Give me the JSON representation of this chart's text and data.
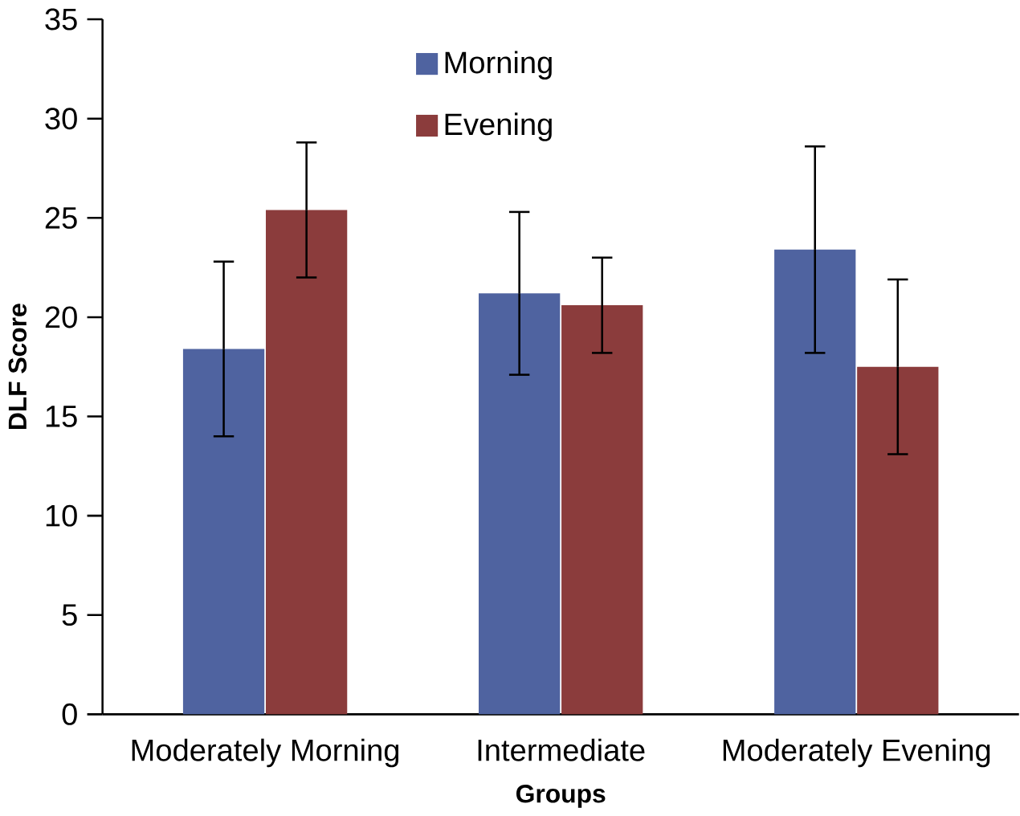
{
  "chart_data": {
    "type": "bar",
    "xlabel": "Groups",
    "ylabel": "DLF Score",
    "categories": [
      "Moderately  Morning",
      "Intermediate",
      "Moderately Evening"
    ],
    "series": [
      {
        "name": "Morning",
        "color": "#4f63a0",
        "values": [
          18.4,
          21.2,
          23.4
        ],
        "errors": [
          4.4,
          4.1,
          5.2
        ]
      },
      {
        "name": "Evening",
        "color": "#8b3c3c",
        "values": [
          25.4,
          20.6,
          17.5
        ],
        "errors": [
          3.4,
          2.4,
          4.4
        ]
      }
    ],
    "ylim": [
      0,
      35
    ],
    "yticks": [
      0,
      5,
      10,
      15,
      20,
      25,
      30,
      35
    ],
    "grid": false,
    "legend": "top"
  }
}
